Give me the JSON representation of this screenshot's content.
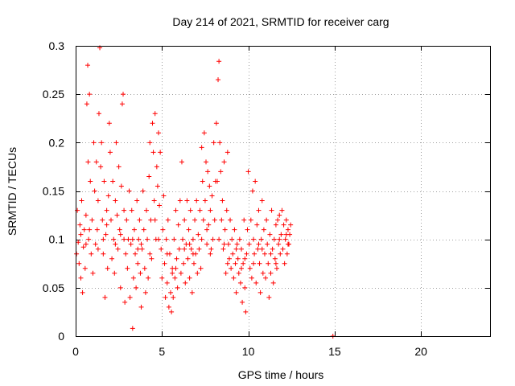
{
  "chart_data": {
    "type": "scatter",
    "title": "Day 214 of 2021, SRMTID for receiver carg",
    "xlabel": "GPS time / hours",
    "ylabel": "SRMTID / TECUs",
    "xlim": [
      0,
      24
    ],
    "ylim": [
      0,
      0.3
    ],
    "xticks": [
      0,
      5,
      10,
      15,
      20
    ],
    "xtick_labels": [
      "0",
      "5",
      "10",
      "15",
      "20"
    ],
    "yticks": [
      0,
      0.05,
      0.1,
      0.15,
      0.2,
      0.25,
      0.3
    ],
    "ytick_labels": [
      "0",
      "0.05",
      "0.1",
      "0.15",
      "0.2",
      "0.25",
      "0.3"
    ],
    "grid": true,
    "marker": "plus",
    "color": "#ff0000",
    "series": [
      {
        "name": "carg",
        "points": [
          [
            0.05,
            0.085
          ],
          [
            0.1,
            0.13
          ],
          [
            0.15,
            0.097
          ],
          [
            0.2,
            0.075
          ],
          [
            0.25,
            0.115
          ],
          [
            0.3,
            0.06
          ],
          [
            0.35,
            0.14
          ],
          [
            0.4,
            0.045
          ],
          [
            0.45,
            0.092
          ],
          [
            0.5,
            0.11
          ],
          [
            0.55,
            0.07
          ],
          [
            0.6,
            0.125
          ],
          [
            0.65,
            0.24
          ],
          [
            0.7,
            0.28
          ],
          [
            0.72,
            0.18
          ],
          [
            0.75,
            0.1
          ],
          [
            0.8,
            0.25
          ],
          [
            0.85,
            0.16
          ],
          [
            0.9,
            0.085
          ],
          [
            0.95,
            0.12
          ],
          [
            1.0,
            0.065
          ],
          [
            1.05,
            0.2
          ],
          [
            1.1,
            0.15
          ],
          [
            1.15,
            0.095
          ],
          [
            1.2,
            0.18
          ],
          [
            1.25,
            0.11
          ],
          [
            1.3,
            0.14
          ],
          [
            1.35,
            0.23
          ],
          [
            1.4,
            0.298
          ],
          [
            1.45,
            0.175
          ],
          [
            1.5,
            0.2
          ],
          [
            1.55,
            0.12
          ],
          [
            1.6,
            0.085
          ],
          [
            1.65,
            0.16
          ],
          [
            1.7,
            0.04
          ],
          [
            1.75,
            0.105
          ],
          [
            1.8,
            0.13
          ],
          [
            1.85,
            0.07
          ],
          [
            1.9,
            0.145
          ],
          [
            1.95,
            0.22
          ],
          [
            2.0,
            0.19
          ],
          [
            2.05,
            0.12
          ],
          [
            2.1,
            0.08
          ],
          [
            2.15,
            0.16
          ],
          [
            2.2,
            0.1
          ],
          [
            2.25,
            0.065
          ],
          [
            2.3,
            0.14
          ],
          [
            2.35,
            0.2
          ],
          [
            2.4,
            0.125
          ],
          [
            2.45,
            0.09
          ],
          [
            2.5,
            0.175
          ],
          [
            2.55,
            0.11
          ],
          [
            2.6,
            0.05
          ],
          [
            2.65,
            0.155
          ],
          [
            2.7,
            0.24
          ],
          [
            2.75,
            0.25
          ],
          [
            2.8,
            0.13
          ],
          [
            2.85,
            0.035
          ],
          [
            2.9,
            0.085
          ],
          [
            2.95,
            0.12
          ],
          [
            3.0,
            0.07
          ],
          [
            3.05,
            0.1
          ],
          [
            3.1,
            0.15
          ],
          [
            3.15,
            0.04
          ],
          [
            3.2,
            0.095
          ],
          [
            3.25,
            0.13
          ],
          [
            3.3,
            0.008
          ],
          [
            3.35,
            0.06
          ],
          [
            3.4,
            0.11
          ],
          [
            3.45,
            0.085
          ],
          [
            3.5,
            0.05
          ],
          [
            3.55,
            0.14
          ],
          [
            3.6,
            0.075
          ],
          [
            3.65,
            0.1
          ],
          [
            3.7,
            0.12
          ],
          [
            3.75,
            0.065
          ],
          [
            3.8,
            0.03
          ],
          [
            3.85,
            0.09
          ],
          [
            3.9,
            0.15
          ],
          [
            3.95,
            0.11
          ],
          [
            4.0,
            0.07
          ],
          [
            4.05,
            0.045
          ],
          [
            4.1,
            0.13
          ],
          [
            4.15,
            0.1
          ],
          [
            4.2,
            0.06
          ],
          [
            4.25,
            0.165
          ],
          [
            4.3,
            0.2
          ],
          [
            4.35,
            0.12
          ],
          [
            4.4,
            0.08
          ],
          [
            4.45,
            0.22
          ],
          [
            4.5,
            0.19
          ],
          [
            4.55,
            0.14
          ],
          [
            4.6,
            0.23
          ],
          [
            4.65,
            0.1
          ],
          [
            4.7,
            0.175
          ],
          [
            4.75,
            0.155
          ],
          [
            4.8,
            0.21
          ],
          [
            4.85,
            0.135
          ],
          [
            4.9,
            0.19
          ],
          [
            4.95,
            0.09
          ],
          [
            5.0,
            0.06
          ],
          [
            5.05,
            0.11
          ],
          [
            5.1,
            0.145
          ],
          [
            5.15,
            0.075
          ],
          [
            5.2,
            0.04
          ],
          [
            5.25,
            0.1
          ],
          [
            5.3,
            0.055
          ],
          [
            5.35,
            0.12
          ],
          [
            5.4,
            0.03
          ],
          [
            5.45,
            0.085
          ],
          [
            5.5,
            0.045
          ],
          [
            5.55,
            0.025
          ],
          [
            5.6,
            0.07
          ],
          [
            5.65,
            0.04
          ],
          [
            5.7,
            0.1
          ],
          [
            5.75,
            0.06
          ],
          [
            5.8,
            0.13
          ],
          [
            5.85,
            0.08
          ],
          [
            5.9,
            0.05
          ],
          [
            5.95,
            0.115
          ],
          [
            6.0,
            0.09
          ],
          [
            6.05,
            0.14
          ],
          [
            6.1,
            0.065
          ],
          [
            6.15,
            0.18
          ],
          [
            6.2,
            0.1
          ],
          [
            6.25,
            0.075
          ],
          [
            6.3,
            0.12
          ],
          [
            6.35,
            0.055
          ],
          [
            6.4,
            0.095
          ],
          [
            6.45,
            0.14
          ],
          [
            6.5,
            0.08
          ],
          [
            6.55,
            0.11
          ],
          [
            6.6,
            0.06
          ],
          [
            6.65,
            0.13
          ],
          [
            6.7,
            0.09
          ],
          [
            6.75,
            0.045
          ],
          [
            6.8,
            0.1
          ],
          [
            6.85,
            0.075
          ],
          [
            6.9,
            0.12
          ],
          [
            6.95,
            0.085
          ],
          [
            7.0,
            0.14
          ],
          [
            7.05,
            0.065
          ],
          [
            7.1,
            0.105
          ],
          [
            7.15,
            0.09
          ],
          [
            7.2,
            0.13
          ],
          [
            7.25,
            0.07
          ],
          [
            7.3,
            0.195
          ],
          [
            7.35,
            0.16
          ],
          [
            7.4,
            0.12
          ],
          [
            7.45,
            0.21
          ],
          [
            7.5,
            0.14
          ],
          [
            7.55,
            0.18
          ],
          [
            7.6,
            0.095
          ],
          [
            7.65,
            0.17
          ],
          [
            7.7,
            0.115
          ],
          [
            7.75,
            0.155
          ],
          [
            7.8,
            0.13
          ],
          [
            7.85,
            0.09
          ],
          [
            7.9,
            0.145
          ],
          [
            7.95,
            0.1
          ],
          [
            8.0,
            0.2
          ],
          [
            8.05,
            0.12
          ],
          [
            8.1,
            0.16
          ],
          [
            8.15,
            0.22
          ],
          [
            8.2,
            0.16
          ],
          [
            8.25,
            0.265
          ],
          [
            8.3,
            0.284
          ],
          [
            8.35,
            0.2
          ],
          [
            8.4,
            0.17
          ],
          [
            8.45,
            0.12
          ],
          [
            8.5,
            0.14
          ],
          [
            8.55,
            0.09
          ],
          [
            8.6,
            0.18
          ],
          [
            8.65,
            0.11
          ],
          [
            8.7,
            0.065
          ],
          [
            8.75,
            0.13
          ],
          [
            8.8,
            0.19
          ],
          [
            8.85,
            0.095
          ],
          [
            8.9,
            0.08
          ],
          [
            8.95,
            0.12
          ],
          [
            9.0,
            0.07
          ],
          [
            9.05,
            0.1
          ],
          [
            9.1,
            0.085
          ],
          [
            9.15,
            0.06
          ],
          [
            9.2,
            0.11
          ],
          [
            9.25,
            0.075
          ],
          [
            9.3,
            0.045
          ],
          [
            9.35,
            0.095
          ],
          [
            9.4,
            0.08
          ],
          [
            9.45,
            0.065
          ],
          [
            9.5,
            0.1
          ],
          [
            9.55,
            0.055
          ],
          [
            9.6,
            0.09
          ],
          [
            9.65,
            0.035
          ],
          [
            9.7,
            0.075
          ],
          [
            9.75,
            0.12
          ],
          [
            9.8,
            0.05
          ],
          [
            9.85,
            0.025
          ],
          [
            9.9,
            0.085
          ],
          [
            9.95,
            0.11
          ],
          [
            10.0,
            0.17
          ],
          [
            10.05,
            0.095
          ],
          [
            10.1,
            0.07
          ],
          [
            10.15,
            0.12
          ],
          [
            10.2,
            0.06
          ],
          [
            10.25,
            0.15
          ],
          [
            10.3,
            0.1
          ],
          [
            10.35,
            0.085
          ],
          [
            10.4,
            0.16
          ],
          [
            10.45,
            0.055
          ],
          [
            10.5,
            0.115
          ],
          [
            10.55,
            0.09
          ],
          [
            10.6,
            0.13
          ],
          [
            10.65,
            0.075
          ],
          [
            10.7,
            0.045
          ],
          [
            10.75,
            0.1
          ],
          [
            10.8,
            0.14
          ],
          [
            10.85,
            0.065
          ],
          [
            10.9,
            0.11
          ],
          [
            10.95,
            0.085
          ],
          [
            11.0,
            0.06
          ],
          [
            11.05,
            0.12
          ],
          [
            11.1,
            0.095
          ],
          [
            11.15,
            0.075
          ],
          [
            11.2,
            0.04
          ],
          [
            11.25,
            0.105
          ],
          [
            11.3,
            0.065
          ],
          [
            11.35,
            0.13
          ],
          [
            11.4,
            0.09
          ],
          [
            11.45,
            0.055
          ],
          [
            11.5,
            0.1
          ],
          [
            11.55,
            0.08
          ],
          [
            11.6,
            0.115
          ],
          [
            11.65,
            0.07
          ],
          [
            11.7,
            0.12
          ],
          [
            11.75,
            0.095
          ],
          [
            11.8,
            0.125
          ],
          [
            11.85,
            0.085
          ],
          [
            11.9,
            0.105
          ],
          [
            11.95,
            0.13
          ],
          [
            12.0,
            0.09
          ],
          [
            12.05,
            0.115
          ],
          [
            12.1,
            0.075
          ],
          [
            12.15,
            0.1
          ],
          [
            12.2,
            0.12
          ],
          [
            12.25,
            0.085
          ],
          [
            12.3,
            0.11
          ],
          [
            12.35,
            0.095
          ],
          [
            12.4,
            0.105
          ],
          [
            12.45,
            0.115
          ],
          [
            0.3,
            0.105
          ],
          [
            0.8,
            0.11
          ],
          [
            1.3,
            0.09
          ],
          [
            1.8,
            0.115
          ],
          [
            2.3,
            0.095
          ],
          [
            2.8,
            0.1
          ],
          [
            3.3,
            0.1
          ],
          [
            3.8,
            0.095
          ],
          [
            4.3,
            0.085
          ],
          [
            4.8,
            0.1
          ],
          [
            5.3,
            0.085
          ],
          [
            5.8,
            0.07
          ],
          [
            6.3,
            0.09
          ],
          [
            6.8,
            0.085
          ],
          [
            7.3,
            0.1
          ],
          [
            7.8,
            0.085
          ],
          [
            8.3,
            0.1
          ],
          [
            8.8,
            0.075
          ],
          [
            9.3,
            0.09
          ],
          [
            9.8,
            0.08
          ],
          [
            10.3,
            0.075
          ],
          [
            10.8,
            0.09
          ],
          [
            11.3,
            0.085
          ],
          [
            11.8,
            0.1
          ],
          [
            12.3,
            0.095
          ],
          [
            0.6,
            0.095
          ],
          [
            1.6,
            0.1
          ],
          [
            2.6,
            0.105
          ],
          [
            3.6,
            0.09
          ],
          [
            4.6,
            0.12
          ],
          [
            5.6,
            0.065
          ],
          [
            6.6,
            0.095
          ],
          [
            7.6,
            0.11
          ],
          [
            8.6,
            0.095
          ],
          [
            9.6,
            0.07
          ],
          [
            10.6,
            0.095
          ],
          [
            11.6,
            0.075
          ],
          [
            12.2,
            0.105
          ],
          [
            14.9,
            0.0
          ]
        ]
      }
    ]
  }
}
